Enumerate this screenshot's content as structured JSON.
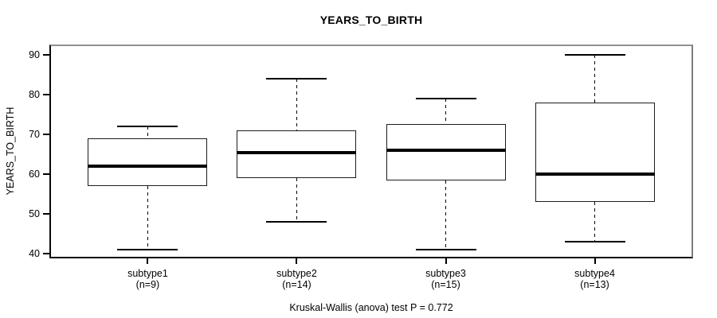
{
  "page": {
    "background": "#ffffff"
  },
  "chart_data": {
    "type": "boxplot",
    "title": "YEARS_TO_BIRTH",
    "ylabel": "YEARS_TO_BIRTH",
    "xlabel": "",
    "footer": "Kruskal-Wallis (anova) test P = 0.772",
    "grid": false,
    "legend": "none",
    "y_axis": {
      "min": 38.9,
      "max": 92.5,
      "ticks": [
        40,
        50,
        60,
        70,
        80,
        90
      ]
    },
    "colors": {
      "box_border": "#000000",
      "median": "#000000",
      "whisker": "#000000",
      "frame": "#888888",
      "text": "#000000",
      "background": "#ffffff"
    },
    "groups": [
      {
        "label": "subtype1",
        "count_label": "(n=9)",
        "n": 9,
        "whisker_low": 41,
        "q1": 57,
        "median": 62,
        "q3": 69,
        "whisker_high": 72
      },
      {
        "label": "subtype2",
        "count_label": "(n=14)",
        "n": 14,
        "whisker_low": 48,
        "q1": 59,
        "median": 65.5,
        "q3": 71,
        "whisker_high": 84
      },
      {
        "label": "subtype3",
        "count_label": "(n=15)",
        "n": 15,
        "whisker_low": 41,
        "q1": 58.5,
        "median": 66,
        "q3": 72.5,
        "whisker_high": 79
      },
      {
        "label": "subtype4",
        "count_label": "(n=13)",
        "n": 13,
        "whisker_low": 43,
        "q1": 53,
        "median": 60,
        "q3": 78,
        "whisker_high": 90
      }
    ]
  }
}
